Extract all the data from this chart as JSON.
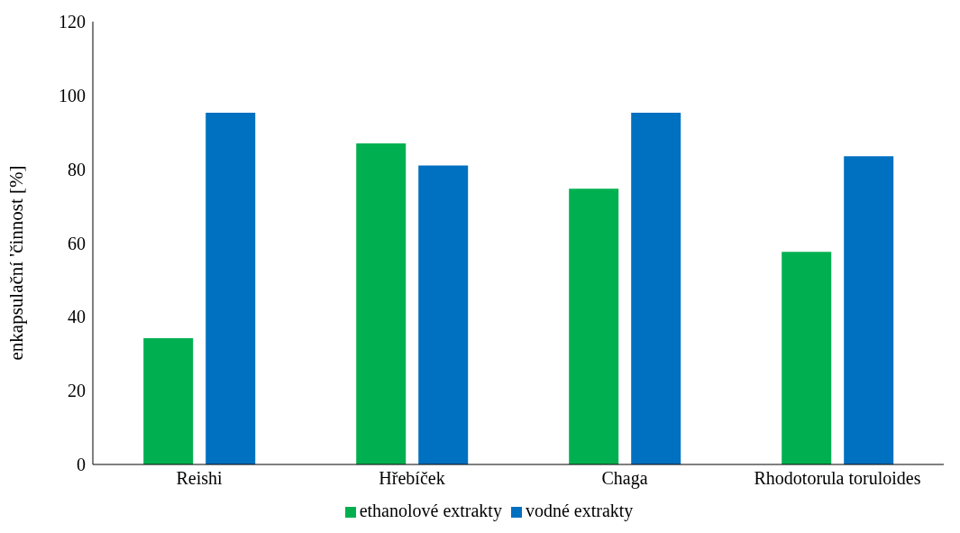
{
  "chart_data": {
    "type": "bar",
    "ylabel": "enkapsulační 'činnost [%]",
    "categories": [
      "Reishi",
      "Hřebíček",
      "Chaga",
      "Rhodotorula toruloides"
    ],
    "series": [
      {
        "name": "ethanolové extrakty",
        "color": "#00b050",
        "values": [
          34.2,
          87,
          74.7,
          57.6
        ]
      },
      {
        "name": "vodné extrakty",
        "color": "#0070c0",
        "values": [
          95.3,
          81,
          95.3,
          83.5
        ]
      }
    ],
    "ylim": [
      0,
      120
    ],
    "yticks": [
      0,
      20,
      40,
      60,
      80,
      100,
      120
    ],
    "grid": false,
    "legend": "bottom"
  }
}
